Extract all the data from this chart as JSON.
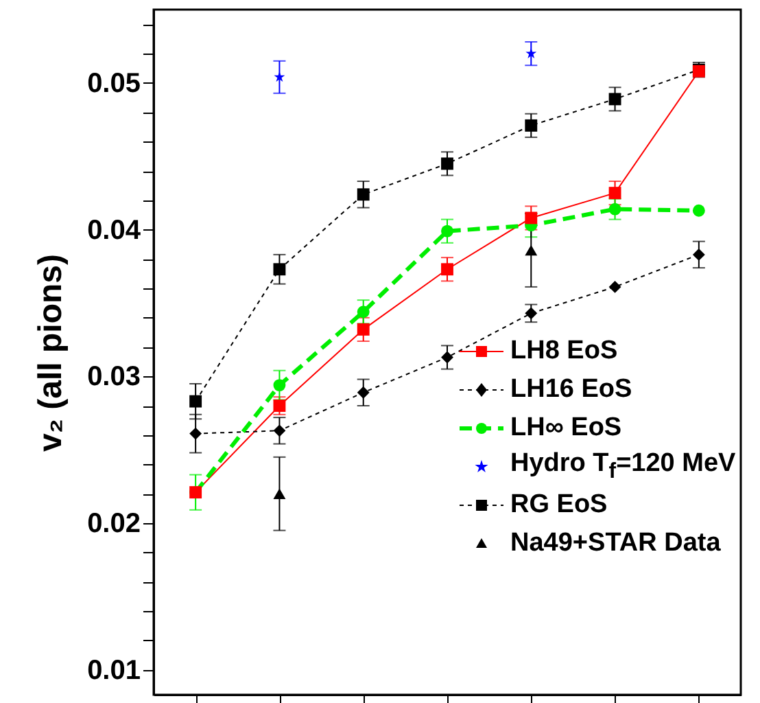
{
  "chart_data": {
    "type": "line",
    "categories": [
      null,
      null,
      null,
      null,
      null,
      null,
      null
    ],
    "ylabel": "v₂ (all pions)",
    "ylim": [
      0.0083,
      0.055
    ],
    "yticks": [
      0.01,
      {
        "value": 0.012,
        "label": null
      },
      {
        "value": 0.014,
        "label": null
      },
      {
        "value": 0.016,
        "label": null
      },
      {
        "value": 0.018,
        "label": null
      },
      0.02,
      {
        "value": 0.022,
        "label": null
      },
      {
        "value": 0.024,
        "label": null
      },
      {
        "value": 0.026,
        "label": null
      },
      {
        "value": 0.028,
        "label": null
      },
      0.03,
      {
        "value": 0.032,
        "label": null
      },
      {
        "value": 0.034,
        "label": null
      },
      {
        "value": 0.036,
        "label": null
      },
      {
        "value": 0.038,
        "label": null
      },
      0.04,
      {
        "value": 0.042,
        "label": null
      },
      {
        "value": 0.044,
        "label": null
      },
      {
        "value": 0.046,
        "label": null
      },
      {
        "value": 0.048,
        "label": null
      },
      0.05,
      {
        "value": 0.052,
        "label": null
      },
      {
        "value": 0.054,
        "label": null
      }
    ],
    "tick_labels": "y",
    "grid": false,
    "legend": "right",
    "series": [
      {
        "name": "LH8 EoS",
        "type": "line",
        "color": "#ff0000",
        "marker": "square",
        "line_style": "solid",
        "values": [
          0.0221,
          0.028,
          0.0332,
          0.0373,
          0.0408,
          0.0425,
          0.0508
        ],
        "errors": [
          null,
          0.0006,
          0.0008,
          0.0008,
          0.0008,
          0.0008,
          null
        ]
      },
      {
        "name": "LH16 EoS",
        "type": "line",
        "color": "#000000",
        "marker": "diamond",
        "line_style": "dotted",
        "values": [
          0.0261,
          0.0263,
          0.0289,
          0.0313,
          0.0343,
          0.0361,
          0.0383
        ],
        "errors": [
          0.0013,
          0.0009,
          0.0009,
          0.0008,
          0.0006,
          null,
          0.0009
        ]
      },
      {
        "name": "LH∞ EoS",
        "type": "line",
        "color": "#00ee00",
        "marker": "circle",
        "line_style": "dashed",
        "values": [
          0.0221,
          0.0294,
          0.0344,
          0.0399,
          0.0403,
          0.0414,
          0.0413
        ],
        "errors": [
          0.0012,
          0.001,
          0.0008,
          0.0008,
          0.0008,
          0.0007,
          null
        ]
      },
      {
        "name": "Hydro T$_{f}$=120 MeV",
        "type": "scatter",
        "color": "#0000ff",
        "marker": "star",
        "values": [
          null,
          0.0504,
          null,
          null,
          0.052,
          null,
          null
        ],
        "errors": [
          null,
          0.0011,
          null,
          null,
          0.0008,
          null,
          null
        ]
      },
      {
        "name": "RG EoS",
        "type": "line",
        "color": "#000000",
        "marker": "square",
        "line_style": "dotted",
        "values": [
          0.0283,
          0.0373,
          0.0424,
          0.0445,
          0.0471,
          0.0489,
          0.0509
        ],
        "errors": [
          0.0012,
          0.001,
          0.0009,
          0.0008,
          0.0008,
          0.0008,
          0.0005
        ]
      },
      {
        "name": "Na49+STAR Data",
        "type": "scatter",
        "color": "#000000",
        "marker": "triangle",
        "values": [
          null,
          0.022,
          null,
          null,
          0.0386,
          null,
          null
        ],
        "errors": [
          null,
          0.0025,
          null,
          null,
          0.0025,
          null,
          null
        ]
      }
    ]
  }
}
